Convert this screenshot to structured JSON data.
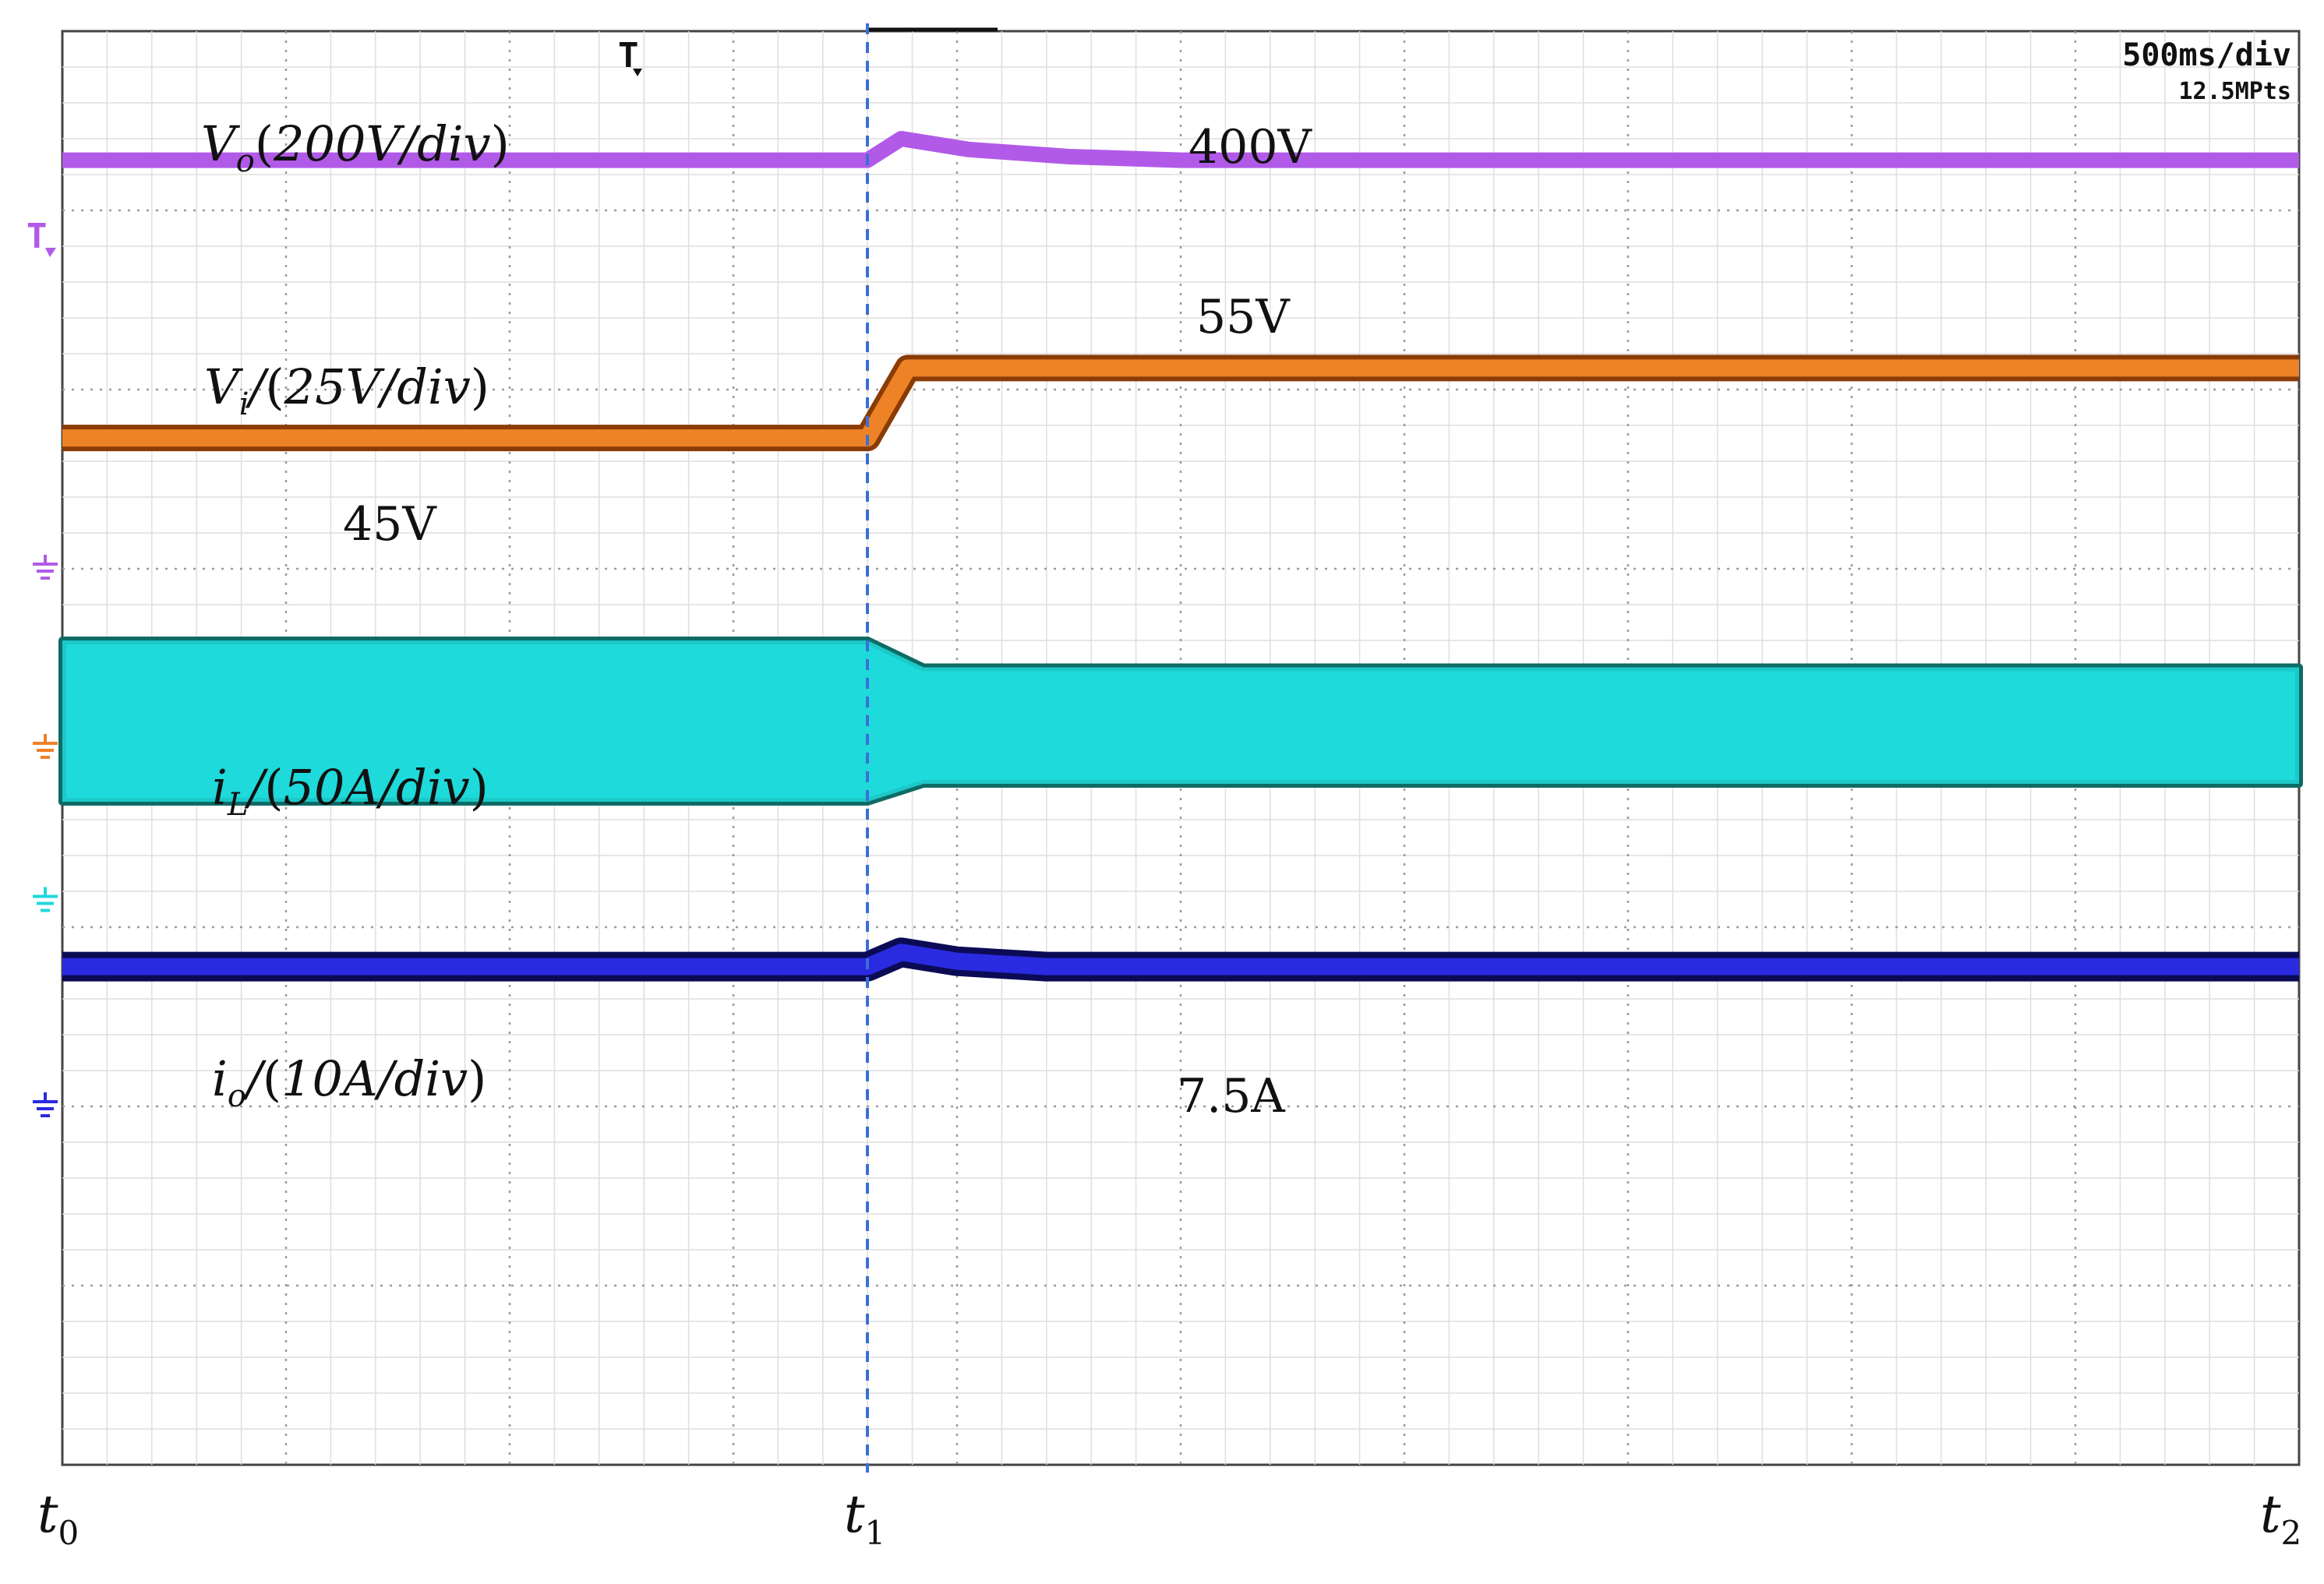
{
  "readout": {
    "timebase": "500ms/div",
    "points": "12.5MPts"
  },
  "colors": {
    "vo": "#b15ae8",
    "vi": "#ee8227",
    "il": "#1fd9d9",
    "il_edge": "#0e6b66",
    "io": "#2a2ae0",
    "io_edge": "#0b0b55",
    "grid": "#c8c8c8",
    "cursor": "#3a6fd8"
  },
  "channels": [
    {
      "id": "vo",
      "symbol": "V",
      "sub": "o",
      "slash": "",
      "scale": "200V/div",
      "value_label": "400V"
    },
    {
      "id": "vi",
      "symbol": "V",
      "sub": "i",
      "slash": "/",
      "scale": "25V/div",
      "value_label_before": "45V",
      "value_label_after": "55V"
    },
    {
      "id": "il",
      "symbol": "i",
      "sub": "L",
      "slash": "/",
      "scale": "50A/div"
    },
    {
      "id": "io",
      "symbol": "i",
      "sub": "o",
      "slash": "/",
      "scale": "10A/div",
      "value_label": "7.5A"
    }
  ],
  "time_marks": [
    {
      "symbol": "t",
      "sub": "0"
    },
    {
      "symbol": "t",
      "sub": "1"
    },
    {
      "symbol": "t",
      "sub": "2"
    }
  ],
  "chart_data": {
    "type": "line",
    "x_unit": "div",
    "xlim": [
      0,
      10
    ],
    "ylim": [
      -4,
      4
    ],
    "divisions": {
      "x": 10,
      "y": 8
    },
    "grid": true,
    "step_time_div": 3.6,
    "series": [
      {
        "name": "V_o",
        "points": [
          [
            0,
            3.28
          ],
          [
            3.6,
            3.28
          ],
          [
            3.75,
            3.4
          ],
          [
            4.05,
            3.34
          ],
          [
            4.5,
            3.3
          ],
          [
            5.0,
            3.28
          ],
          [
            10,
            3.28
          ]
        ]
      },
      {
        "name": "V_i",
        "points": [
          [
            0,
            1.73
          ],
          [
            3.6,
            1.73
          ],
          [
            3.78,
            2.12
          ],
          [
            10,
            2.12
          ]
        ]
      },
      {
        "name": "i_L",
        "band": [
          [
            0,
            -0.3,
            0.6
          ],
          [
            3.6,
            -0.3,
            0.6
          ],
          [
            3.85,
            -0.2,
            0.45
          ],
          [
            10,
            -0.2,
            0.45
          ]
        ]
      },
      {
        "name": "i_o",
        "points": [
          [
            0,
            -1.22
          ],
          [
            3.6,
            -1.22
          ],
          [
            3.75,
            -1.14
          ],
          [
            4.0,
            -1.19
          ],
          [
            4.4,
            -1.22
          ],
          [
            10,
            -1.22
          ]
        ]
      }
    ]
  }
}
